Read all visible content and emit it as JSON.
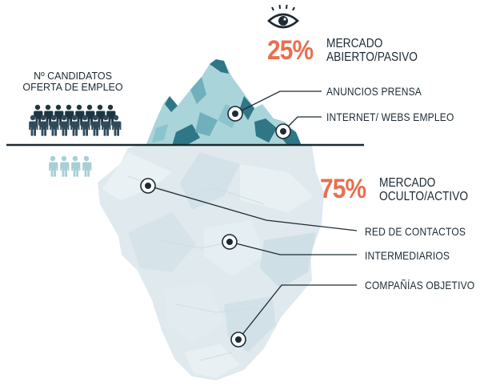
{
  "candidates_title": [
    "Nº CANDIDATOS",
    "OFERTA DE EMPLEO"
  ],
  "open_market": {
    "percent": "25%",
    "title_lines": [
      "MERCADO",
      "ABIERTO/PASIVO"
    ],
    "items": [
      "ANUNCIOS PRENSA",
      "INTERNET/ WEBS EMPLEO"
    ]
  },
  "hidden_market": {
    "percent": "75%",
    "title_lines": [
      "MERCADO",
      "OCULTO/ACTIVO"
    ],
    "items": [
      "RED DE CONTACTOS",
      "INTERMEDIARIOS",
      "COMPAÑÍAS OBJETIVO"
    ]
  },
  "colors": {
    "accent": "#e96f50",
    "text": "#1d2a33",
    "ice_top": "#a9d4da",
    "ice_dark": "#2f7686",
    "ice_bottom": "#dfe9ee",
    "people_above": "#1f3542",
    "people_below": "#a8cfd6"
  },
  "icons": [
    "eye-icon",
    "person-icon"
  ]
}
